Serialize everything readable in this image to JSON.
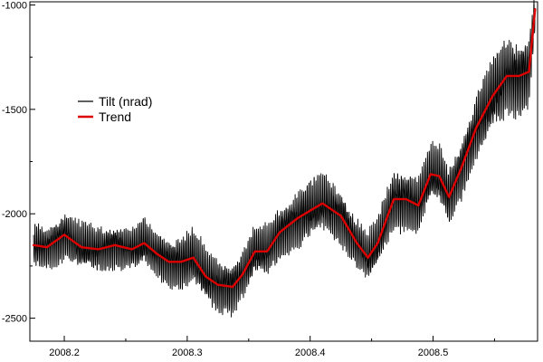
{
  "chart_data": {
    "type": "line",
    "title": "",
    "xlabel": "",
    "ylabel": "",
    "xlim": [
      2008.172,
      2008.585
    ],
    "ylim": [
      -2610,
      -985
    ],
    "x_ticks": [
      "2008.2",
      "2008.3",
      "2008.4",
      "2008.5"
    ],
    "y_ticks": [
      "-1000",
      "-1500",
      "-2000",
      "-2500"
    ],
    "legend_position": "upper-left",
    "series": [
      {
        "name": "Tilt (nrad)",
        "color": "#000000",
        "style": "high-frequency oscillation around trend",
        "x": [
          2008.175,
          2008.186,
          2008.2,
          2008.214,
          2008.228,
          2008.241,
          2008.255,
          2008.265,
          2008.275,
          2008.285,
          2008.295,
          2008.305,
          2008.315,
          2008.325,
          2008.337,
          2008.345,
          2008.355,
          2008.365,
          2008.375,
          2008.39,
          2008.41,
          2008.425,
          2008.438,
          2008.447,
          2008.455,
          2008.468,
          2008.478,
          2008.488,
          2008.498,
          2008.505,
          2008.513,
          2008.523,
          2008.535,
          2008.548,
          2008.56,
          2008.57,
          2008.578,
          2008.583
        ],
        "amplitude": [
          100,
          95,
          110,
          105,
          100,
          100,
          95,
          110,
          100,
          110,
          120,
          130,
          125,
          120,
          115,
          110,
          110,
          120,
          120,
          130,
          130,
          130,
          115,
          110,
          115,
          140,
          140,
          135,
          130,
          130,
          125,
          140,
          150,
          170,
          180,
          170,
          160,
          80
        ]
      },
      {
        "name": "Trend",
        "color": "#dd0000",
        "x": [
          2008.175,
          2008.186,
          2008.2,
          2008.214,
          2008.228,
          2008.241,
          2008.255,
          2008.265,
          2008.275,
          2008.285,
          2008.295,
          2008.305,
          2008.315,
          2008.325,
          2008.337,
          2008.345,
          2008.355,
          2008.365,
          2008.375,
          2008.39,
          2008.41,
          2008.425,
          2008.438,
          2008.447,
          2008.455,
          2008.468,
          2008.478,
          2008.488,
          2008.498,
          2008.505,
          2008.513,
          2008.523,
          2008.535,
          2008.548,
          2008.56,
          2008.57,
          2008.578,
          2008.583
        ],
        "y": [
          -2150,
          -2160,
          -2100,
          -2160,
          -2170,
          -2150,
          -2170,
          -2140,
          -2190,
          -2230,
          -2230,
          -2210,
          -2300,
          -2340,
          -2350,
          -2290,
          -2180,
          -2180,
          -2090,
          -2020,
          -1950,
          -2010,
          -2140,
          -2210,
          -2140,
          -1930,
          -1930,
          -1960,
          -1810,
          -1820,
          -1920,
          -1780,
          -1590,
          -1440,
          -1340,
          -1340,
          -1320,
          -1020
        ]
      }
    ]
  }
}
